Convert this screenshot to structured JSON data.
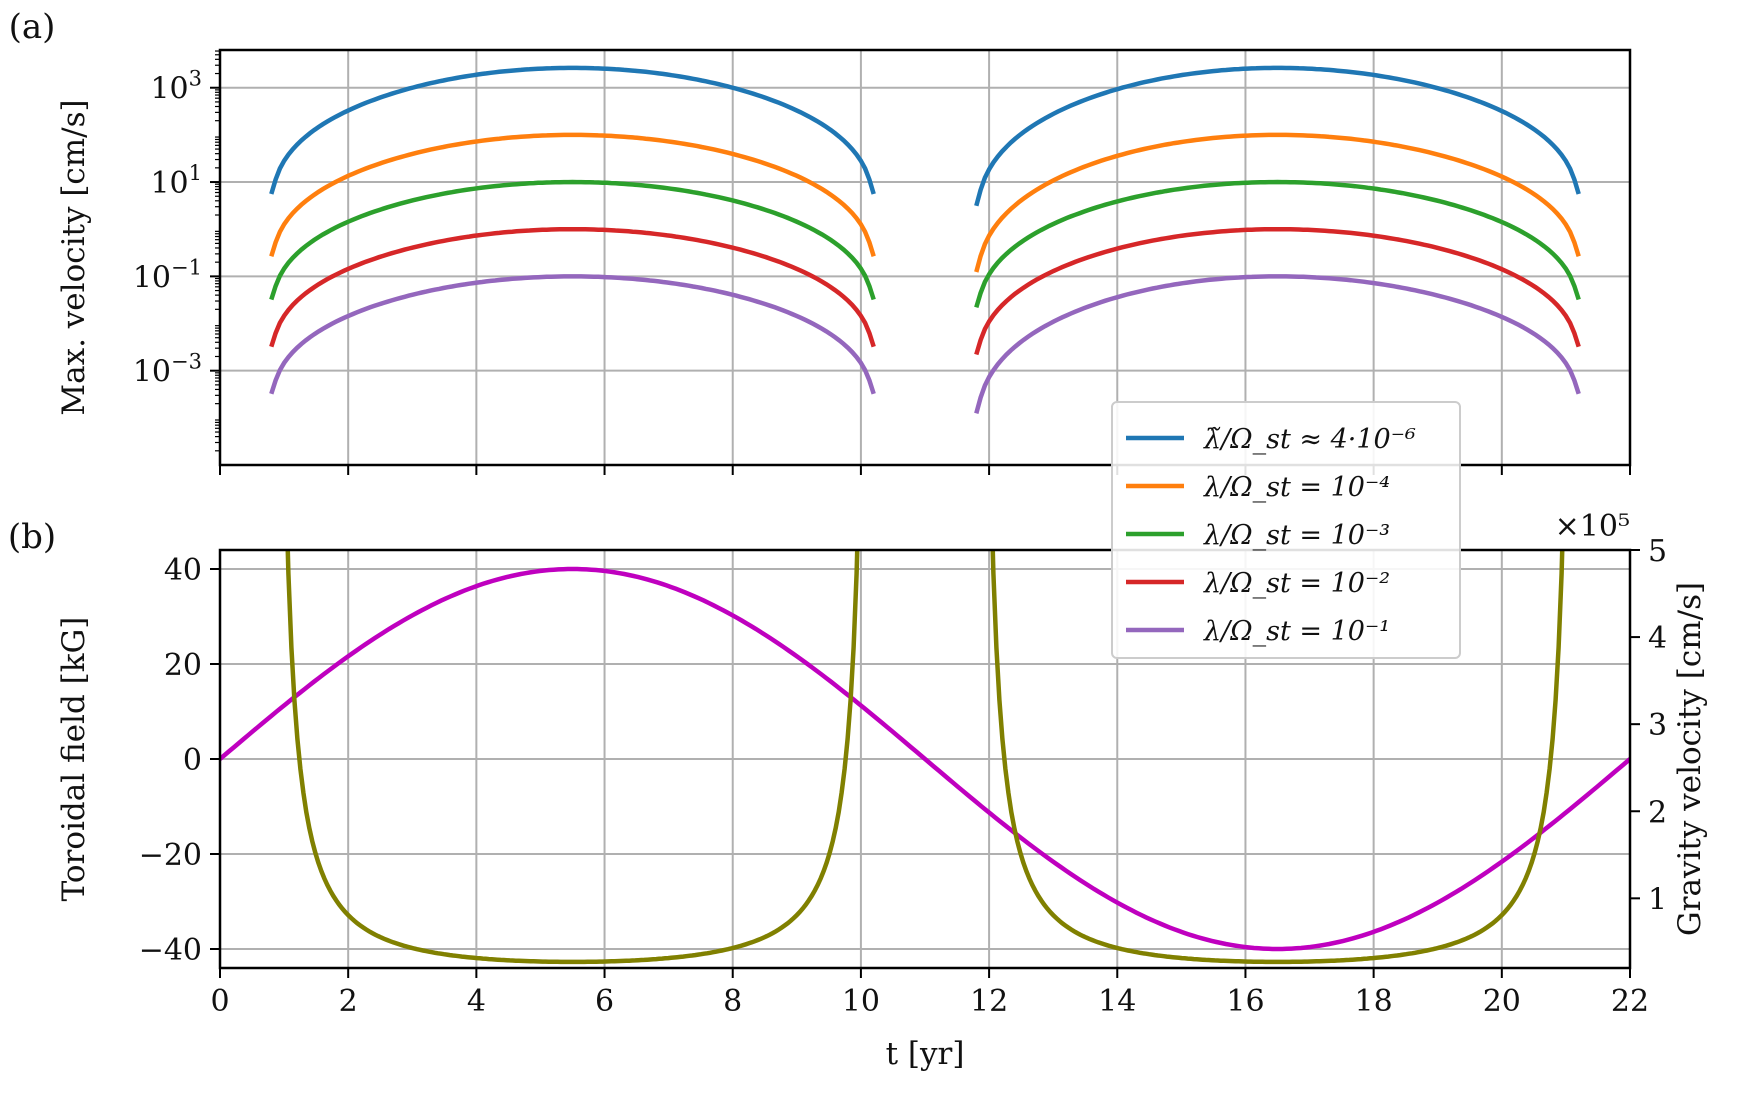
{
  "chart_data": [
    {
      "panel": "(a)",
      "type": "line",
      "xlabel": "",
      "ylabel": "Max. velocity [cm/s]",
      "xlim": [
        0,
        22
      ],
      "ylim_log10": [
        -5,
        3.8
      ],
      "yscale": "log",
      "grid": true,
      "x_ticks": [
        0,
        2,
        4,
        6,
        8,
        10,
        12,
        14,
        16,
        18,
        20,
        22
      ],
      "y_ticks_log10": [
        -3,
        -1,
        1,
        3
      ],
      "y_tick_labels": [
        "10^-3",
        "10^-1",
        "10^1",
        "10^3"
      ],
      "legend_position": "lower-right",
      "curve_shape": "each series = amplitude × (sqrt(|sin(πτ)|))^0.7 on two windows (cycles) t ∈ [0.8, 10.2] and [11.8, 21.2] yr, τ the normalized position within each window",
      "windows": [
        [
          0.8,
          10.2
        ],
        [
          11.8,
          21.2
        ]
      ],
      "series": [
        {
          "name": "λ̃/Ω_st ≈ 4·10⁻⁶",
          "color": "#1f77b4",
          "peak_log10": 3.42,
          "end_log10": 0.2,
          "start_log10_cycle2": -0.1
        },
        {
          "name": "λ/Ω_st = 10⁻⁴",
          "color": "#ff7f0e",
          "peak_log10": 2.0,
          "end_log10": -1.1,
          "start_log10_cycle2": -1.5
        },
        {
          "name": "λ/Ω_st = 10⁻³",
          "color": "#2ca02c",
          "peak_log10": 1.0,
          "end_log10": -2.0,
          "start_log10_cycle2": -2.2
        },
        {
          "name": "λ/Ω_st = 10⁻²",
          "color": "#d62728",
          "peak_log10": 0.0,
          "end_log10": -3.0,
          "start_log10_cycle2": -3.2
        },
        {
          "name": "λ/Ω_st = 10⁻¹",
          "color": "#9467bd",
          "peak_log10": -1.0,
          "end_log10": -4.0,
          "start_log10_cycle2": -4.5
        }
      ]
    },
    {
      "panel": "(b)",
      "type": "line",
      "xlabel": "t [yr]",
      "ylabel_left": "Toroidal field [kG]",
      "ylabel_right": "Gravity velocity [cm/s]",
      "right_axis_multiplier": "×10⁵",
      "xlim": [
        0,
        22
      ],
      "ylim_left": [
        -44,
        44
      ],
      "ylim_right": [
        0.2,
        5.0
      ],
      "x_ticks": [
        0,
        2,
        4,
        6,
        8,
        10,
        12,
        14,
        16,
        18,
        20,
        22
      ],
      "y_ticks_left": [
        -40,
        -20,
        0,
        20,
        40
      ],
      "y_tick_labels_left": [
        "−40",
        "−20",
        "0",
        "20",
        "40"
      ],
      "y_ticks_right": [
        1,
        2,
        3,
        4,
        5
      ],
      "grid": true,
      "series": [
        {
          "name": "Toroidal field",
          "axis": "left",
          "color": "#bf00bf",
          "x": [
            0,
            1,
            2,
            3,
            4,
            5,
            5.5,
            6,
            7,
            8,
            9,
            10,
            11,
            12,
            13,
            14,
            15,
            16,
            16.5,
            17,
            18,
            19,
            20,
            21,
            22
          ],
          "y": [
            0,
            11.4,
            21.8,
            30.4,
            36.5,
            39.6,
            40.0,
            39.6,
            36.5,
            30.4,
            21.8,
            11.4,
            0,
            -11.4,
            -21.8,
            -30.4,
            -36.5,
            -39.6,
            -40.0,
            -39.6,
            -36.5,
            -30.4,
            -21.8,
            -11.4,
            0
          ]
        },
        {
          "name": "Gravity velocity",
          "axis": "right",
          "color": "#808000",
          "x": [
            0.85,
            1.0,
            1.5,
            2.0,
            3.0,
            4.0,
            5.5,
            7.0,
            8.0,
            9.0,
            9.5,
            10.0,
            10.15,
            11.85,
            12.0,
            12.5,
            13.0,
            14.0,
            15.0,
            16.5,
            18.0,
            19.0,
            20.0,
            20.5,
            21.0,
            21.15
          ],
          "y": [
            5.0,
            3.2,
            1.25,
            0.65,
            0.4,
            0.3,
            0.27,
            0.3,
            0.4,
            0.65,
            1.25,
            3.2,
            5.0,
            5.0,
            3.2,
            1.25,
            0.65,
            0.4,
            0.3,
            0.27,
            0.3,
            0.4,
            0.65,
            1.25,
            3.2,
            5.0
          ]
        }
      ]
    }
  ]
}
